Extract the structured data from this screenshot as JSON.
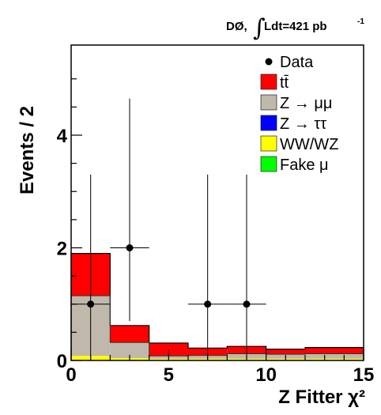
{
  "chart_data": {
    "type": "bar",
    "title": "",
    "xlabel": "Z Fitter χ²",
    "ylabel": "Events / 2",
    "annotation": {
      "prefix": "DØ, ",
      "integral": "∫",
      "text": "Ldt=421 pb",
      "superscript": "-1"
    },
    "xlim": [
      0,
      15
    ],
    "ylim": [
      0,
      5.6
    ],
    "x_ticks": [
      0,
      5,
      10,
      15
    ],
    "y_ticks": [
      0,
      2,
      4
    ],
    "x_tick_labels": [
      "0",
      "5",
      "10",
      "15"
    ],
    "y_tick_labels": [
      "0",
      "2",
      "4"
    ],
    "bin_edges": [
      0,
      2,
      4,
      6,
      8,
      10,
      12,
      15
    ],
    "legend_position": "top-right",
    "series": [
      {
        "name": "WW/WZ",
        "color": "#ffff00",
        "values": [
          0.08,
          0.04,
          0.03,
          0.03,
          0.03,
          0.03,
          0.03
        ]
      },
      {
        "name": "Fake μ",
        "color": "#00ff00",
        "values": [
          0,
          0,
          0,
          0,
          0,
          0,
          0
        ]
      },
      {
        "name": "Z → ττ",
        "color": "#0000ff",
        "values": [
          0,
          0,
          0,
          0,
          0,
          0,
          0
        ]
      },
      {
        "name": "Z → μμ",
        "color": "#c0b8aa",
        "values": [
          1.07,
          0.28,
          0.05,
          0.06,
          0.09,
          0.08,
          0.09
        ]
      },
      {
        "name": "tt̄",
        "color": "#ff0000",
        "values": [
          0.75,
          0.3,
          0.23,
          0.13,
          0.13,
          0.09,
          0.11
        ]
      }
    ],
    "data_points": {
      "name": "Data",
      "x": [
        1,
        3,
        7,
        9
      ],
      "y": [
        1,
        2,
        1,
        1
      ],
      "xerr": [
        1,
        1,
        1,
        1
      ],
      "yerr_low": [
        1,
        1.3,
        1,
        1
      ],
      "yerr_high": [
        2.3,
        2.65,
        2.3,
        2.3
      ]
    },
    "legend": [
      {
        "label": "Data",
        "kind": "marker"
      },
      {
        "label": "tt̄",
        "color": "#ff0000"
      },
      {
        "label": "Z → μμ",
        "color": "#c0b8aa"
      },
      {
        "label": "Z → ττ",
        "color": "#0000ff"
      },
      {
        "label": "WW/WZ",
        "color": "#ffff00"
      },
      {
        "label": "Fake μ",
        "color": "#00ff00"
      }
    ]
  }
}
